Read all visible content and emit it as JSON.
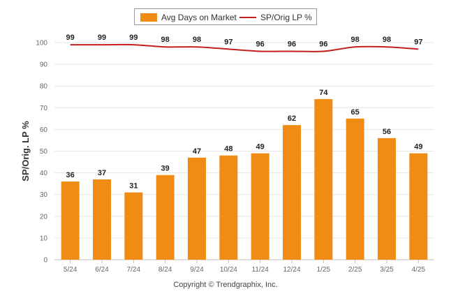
{
  "chart_data": {
    "type": "bar",
    "categories": [
      "5/24",
      "6/24",
      "7/24",
      "8/24",
      "9/24",
      "10/24",
      "11/24",
      "12/24",
      "1/25",
      "2/25",
      "3/25",
      "4/25"
    ],
    "series": [
      {
        "name": "Avg Days on Market",
        "type": "bar",
        "color": "#f08c14",
        "values": [
          36,
          37,
          31,
          39,
          47,
          48,
          49,
          62,
          74,
          65,
          56,
          49
        ]
      },
      {
        "name": "SP/Orig LP %",
        "type": "line",
        "color": "#c41f1f",
        "values": [
          99,
          99,
          99,
          98,
          98,
          97,
          96,
          96,
          96,
          98,
          98,
          97
        ]
      }
    ],
    "ylabel": "SP/Orig. LP %",
    "ylim": [
      0,
      100
    ],
    "yticks": [
      "0",
      "10",
      "20",
      "30",
      "40",
      "50",
      "60",
      "70",
      "80",
      "90",
      "100"
    ],
    "grid": true,
    "legend_position": "top-center"
  },
  "legend": {
    "bar_label": "Avg Days on Market",
    "line_label": "SP/Orig LP %"
  },
  "footer": "Copyright © Trendgraphix, Inc."
}
